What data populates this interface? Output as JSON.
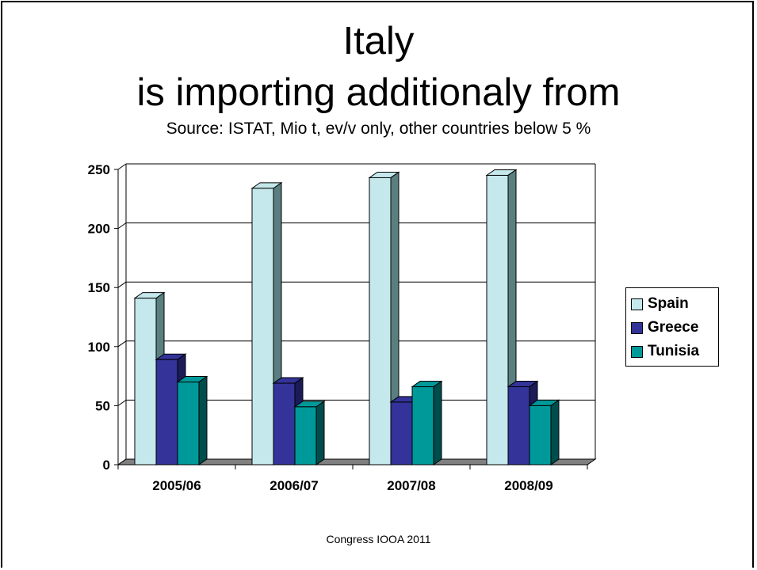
{
  "slide": {
    "title_line1": "Italy",
    "title_line2": "is importing additionaly from",
    "subtitle": "Source: ISTAT,  Mio t, ev/v only, other countries below 5 %",
    "footer": "Congress IOOA 2011"
  },
  "chart_data": {
    "type": "bar",
    "three_d": true,
    "categories": [
      "2005/06",
      "2006/07",
      "2007/08",
      "2008/09"
    ],
    "series": [
      {
        "name": "Spain",
        "values": [
          141,
          234,
          243,
          245
        ],
        "color": "#c4e8ec",
        "side_color": "#5a7f80"
      },
      {
        "name": "Greece",
        "values": [
          89,
          69,
          53,
          66
        ],
        "color": "#333399",
        "side_color": "#1b1b5a"
      },
      {
        "name": "Tunisia",
        "values": [
          70,
          49,
          66,
          50
        ],
        "color": "#00999a",
        "side_color": "#004d4d"
      }
    ],
    "ylim": [
      0,
      250
    ],
    "yticks": [
      "0",
      "50",
      "100",
      "150",
      "200",
      "250"
    ],
    "grid": true,
    "legend_position": "right"
  }
}
